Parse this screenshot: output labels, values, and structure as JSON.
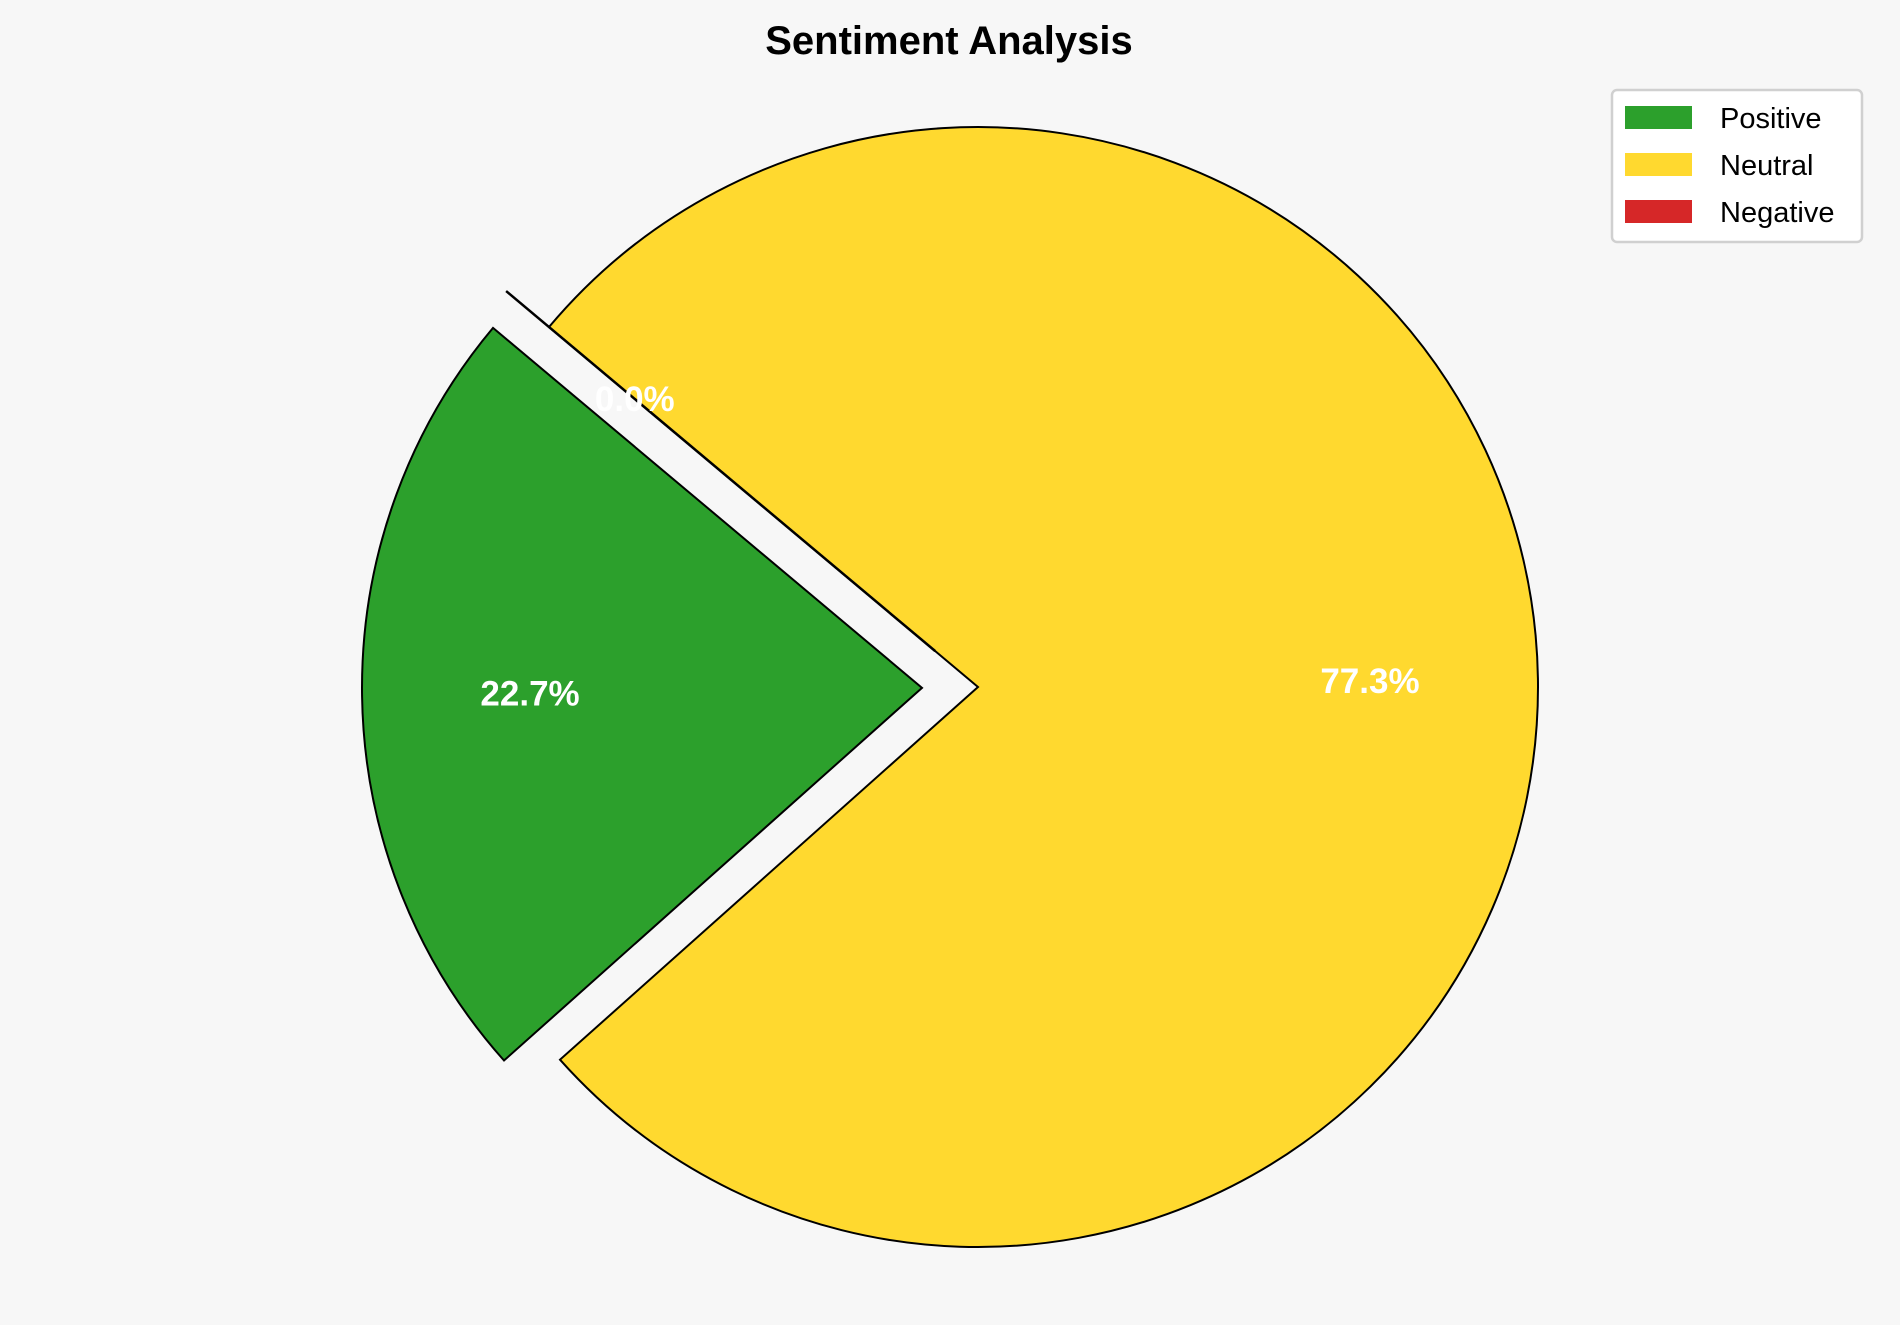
{
  "chart_data": {
    "type": "pie",
    "title": "Sentiment Analysis",
    "labels": [
      "Positive",
      "Neutral",
      "Negative"
    ],
    "values": [
      22.7,
      77.3,
      0.0
    ],
    "pct_labels": [
      "22.7%",
      "77.3%",
      "0.0%"
    ],
    "colors": [
      "#2ca02c",
      "#ffd92f",
      "#d62728"
    ],
    "explode": [
      0.1,
      0,
      0.1
    ],
    "start_angle": 140,
    "legend_position": "top-right"
  }
}
